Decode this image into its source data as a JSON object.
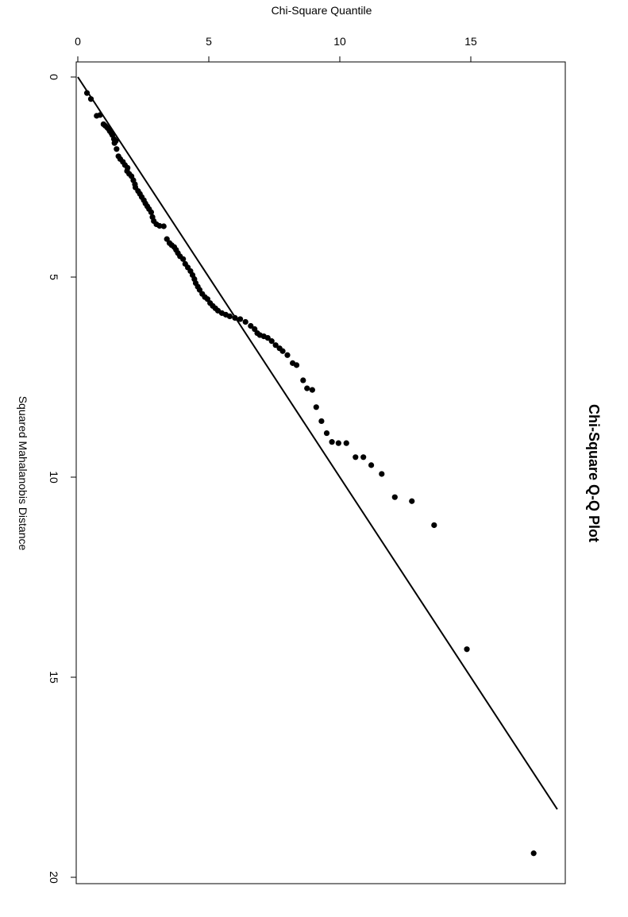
{
  "chart_data": {
    "type": "scatter",
    "title": "Chi-Square Q-Q Plot",
    "xlabel": "Squared Mahalanobis Distance",
    "ylabel": "Chi-Square Quantile",
    "xlim": [
      0,
      20.3
    ],
    "ylim": [
      0,
      18.3
    ],
    "x_ticks": [
      0,
      5,
      10,
      15,
      20
    ],
    "y_ticks": [
      0,
      5,
      10,
      15
    ],
    "grid": false,
    "legend": "none",
    "orientation": "rotated-90-clockwise",
    "reference_line": {
      "type": "y=x",
      "from": [
        0,
        0
      ],
      "to": [
        18.3,
        18.3
      ]
    },
    "point_color": "#000000",
    "line_color": "#000000",
    "points": [
      [
        0.4,
        0.35
      ],
      [
        0.55,
        0.5
      ],
      [
        0.97,
        0.72
      ],
      [
        0.95,
        0.85
      ],
      [
        1.18,
        0.98
      ],
      [
        1.22,
        1.05
      ],
      [
        1.27,
        1.13
      ],
      [
        1.3,
        1.18
      ],
      [
        1.35,
        1.22
      ],
      [
        1.4,
        1.28
      ],
      [
        1.45,
        1.32
      ],
      [
        1.55,
        1.38
      ],
      [
        1.6,
        1.45
      ],
      [
        1.65,
        1.4
      ],
      [
        1.8,
        1.48
      ],
      [
        1.98,
        1.55
      ],
      [
        2.05,
        1.62
      ],
      [
        2.12,
        1.72
      ],
      [
        2.2,
        1.8
      ],
      [
        2.27,
        1.9
      ],
      [
        2.35,
        1.88
      ],
      [
        2.42,
        1.96
      ],
      [
        2.48,
        2.05
      ],
      [
        2.58,
        2.12
      ],
      [
        2.68,
        2.18
      ],
      [
        2.76,
        2.2
      ],
      [
        2.85,
        2.3
      ],
      [
        2.92,
        2.37
      ],
      [
        3.0,
        2.44
      ],
      [
        3.08,
        2.52
      ],
      [
        3.16,
        2.58
      ],
      [
        3.23,
        2.65
      ],
      [
        3.3,
        2.72
      ],
      [
        3.38,
        2.8
      ],
      [
        3.5,
        2.85
      ],
      [
        3.6,
        2.9
      ],
      [
        3.68,
        3.0
      ],
      [
        3.72,
        3.12
      ],
      [
        3.73,
        3.28
      ],
      [
        4.05,
        3.4
      ],
      [
        4.15,
        3.5
      ],
      [
        4.2,
        3.58
      ],
      [
        4.25,
        3.68
      ],
      [
        4.32,
        3.75
      ],
      [
        4.4,
        3.82
      ],
      [
        4.48,
        3.9
      ],
      [
        4.55,
        4.02
      ],
      [
        4.67,
        4.1
      ],
      [
        4.76,
        4.2
      ],
      [
        4.85,
        4.3
      ],
      [
        4.95,
        4.38
      ],
      [
        5.05,
        4.45
      ],
      [
        5.15,
        4.5
      ],
      [
        5.24,
        4.58
      ],
      [
        5.32,
        4.65
      ],
      [
        5.42,
        4.75
      ],
      [
        5.5,
        4.85
      ],
      [
        5.55,
        4.95
      ],
      [
        5.65,
        5.05
      ],
      [
        5.72,
        5.15
      ],
      [
        5.78,
        5.25
      ],
      [
        5.84,
        5.35
      ],
      [
        5.9,
        5.5
      ],
      [
        5.94,
        5.65
      ],
      [
        5.98,
        5.8
      ],
      [
        6.02,
        6.0
      ],
      [
        6.05,
        6.2
      ],
      [
        6.12,
        6.4
      ],
      [
        6.22,
        6.6
      ],
      [
        6.3,
        6.75
      ],
      [
        6.4,
        6.85
      ],
      [
        6.45,
        6.95
      ],
      [
        6.48,
        7.1
      ],
      [
        6.52,
        7.25
      ],
      [
        6.6,
        7.4
      ],
      [
        6.7,
        7.55
      ],
      [
        6.78,
        7.7
      ],
      [
        6.85,
        7.82
      ],
      [
        6.95,
        8.0
      ],
      [
        7.15,
        8.2
      ],
      [
        7.2,
        8.35
      ],
      [
        7.58,
        8.6
      ],
      [
        7.78,
        8.75
      ],
      [
        7.82,
        8.95
      ],
      [
        8.25,
        9.1
      ],
      [
        8.6,
        9.3
      ],
      [
        8.9,
        9.5
      ],
      [
        9.12,
        9.7
      ],
      [
        9.15,
        9.95
      ],
      [
        9.15,
        10.25
      ],
      [
        9.5,
        10.6
      ],
      [
        9.5,
        10.9
      ],
      [
        9.7,
        11.2
      ],
      [
        9.92,
        11.6
      ],
      [
        10.5,
        12.1
      ],
      [
        10.6,
        12.75
      ],
      [
        11.2,
        13.6
      ],
      [
        14.3,
        14.85
      ],
      [
        19.4,
        17.4
      ]
    ]
  }
}
